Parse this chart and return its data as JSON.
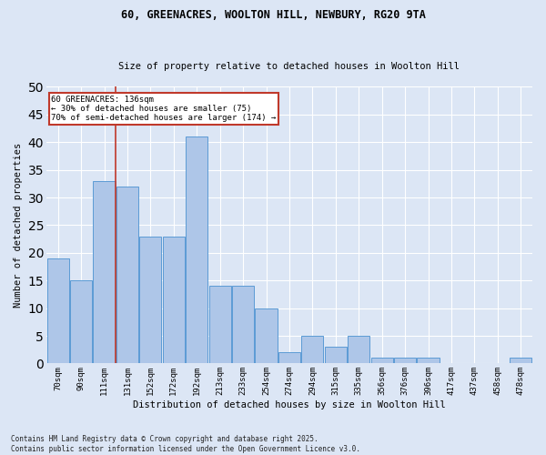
{
  "title1": "60, GREENACRES, WOOLTON HILL, NEWBURY, RG20 9TA",
  "title2": "Size of property relative to detached houses in Woolton Hill",
  "xlabel": "Distribution of detached houses by size in Woolton Hill",
  "ylabel": "Number of detached properties",
  "categories": [
    "70sqm",
    "90sqm",
    "111sqm",
    "131sqm",
    "152sqm",
    "172sqm",
    "192sqm",
    "213sqm",
    "233sqm",
    "254sqm",
    "274sqm",
    "294sqm",
    "315sqm",
    "335sqm",
    "356sqm",
    "376sqm",
    "396sqm",
    "417sqm",
    "437sqm",
    "458sqm",
    "478sqm"
  ],
  "values": [
    19,
    15,
    33,
    32,
    23,
    23,
    41,
    14,
    14,
    10,
    2,
    5,
    3,
    5,
    1,
    1,
    1,
    0,
    0,
    0,
    1
  ],
  "bar_color": "#aec6e8",
  "bar_edge_color": "#5b9bd5",
  "background_color": "#dce6f5",
  "fig_background_color": "#dce6f5",
  "grid_color": "#ffffff",
  "vline_color": "#c0392b",
  "annotation_text": "60 GREENACRES: 136sqm\n← 30% of detached houses are smaller (75)\n70% of semi-detached houses are larger (174) →",
  "annotation_box_color": "#c0392b",
  "footer": "Contains HM Land Registry data © Crown copyright and database right 2025.\nContains public sector information licensed under the Open Government Licence v3.0.",
  "ylim": [
    0,
    50
  ],
  "yticks": [
    0,
    5,
    10,
    15,
    20,
    25,
    30,
    35,
    40,
    45,
    50
  ]
}
